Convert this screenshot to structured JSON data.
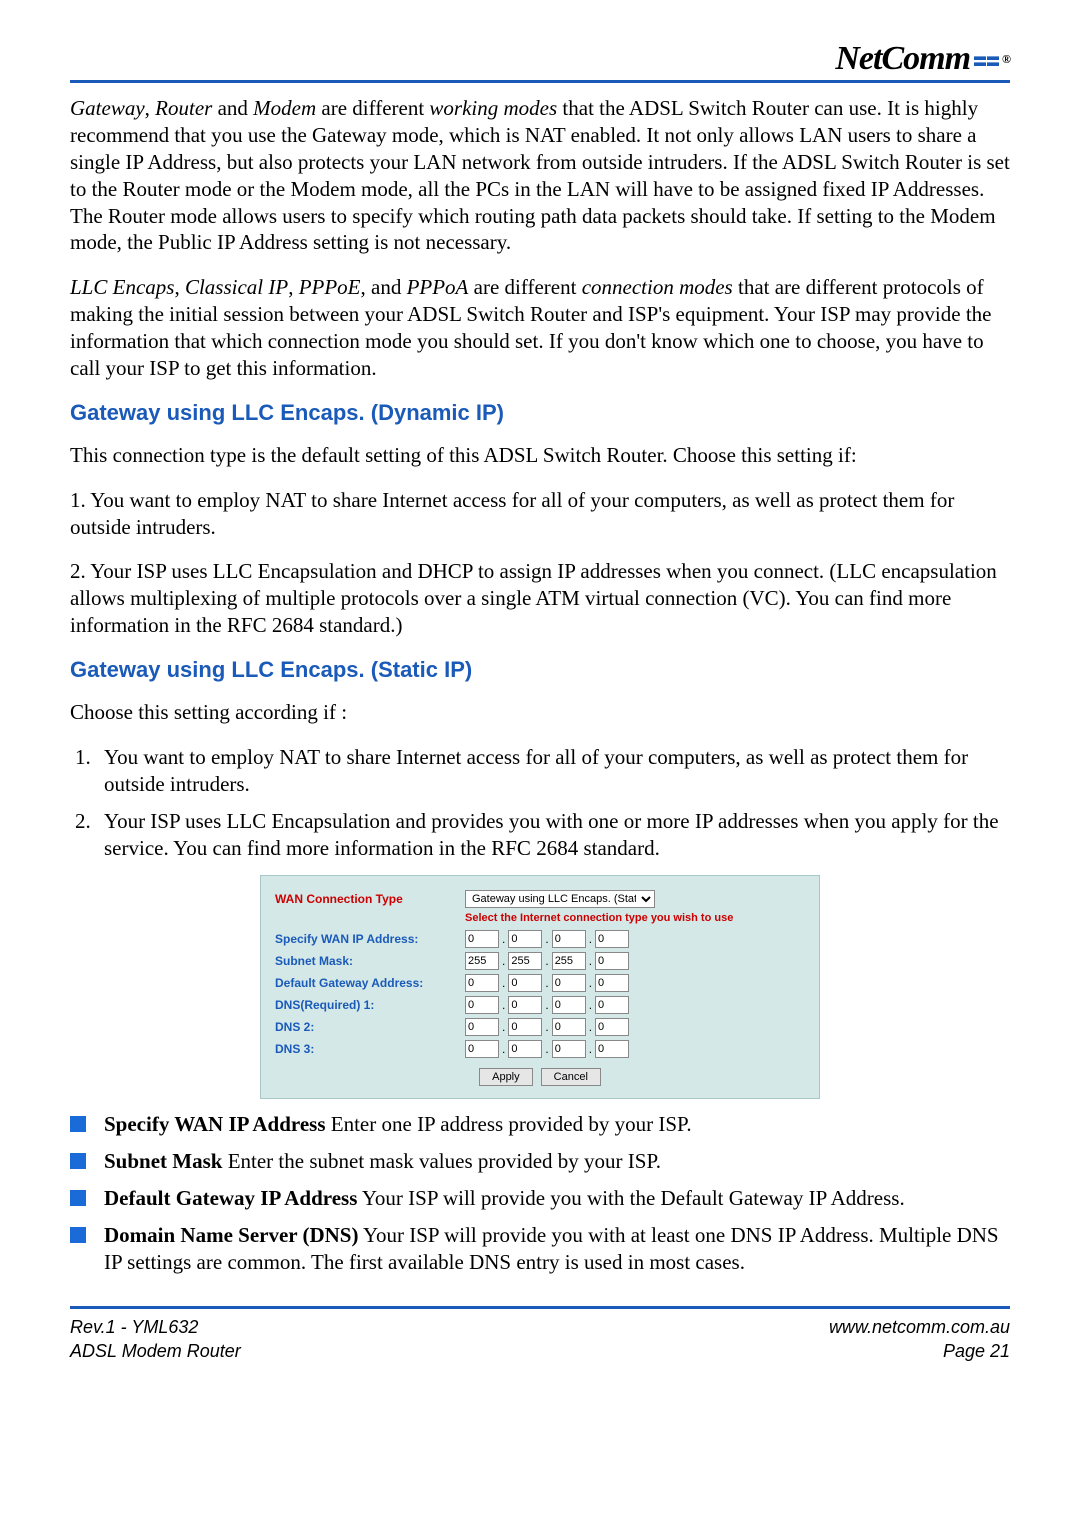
{
  "logo": {
    "text": "NetComm",
    "reg": "®"
  },
  "para1": "<span class=\"ital\">Gateway</span>, <span class=\"ital\">Router</span> and <span class=\"ital\">Modem</span> are different <span class=\"ital\">working modes</span> that the ADSL Switch Router can use. It is highly recommend that you use the Gateway mode, which is NAT enabled. It not only allows LAN users to share a single IP Address, but also protects your LAN network from outside intruders. If the ADSL Switch Router is set to the Router mode or the Modem mode, all the PCs in the LAN will have to be assigned fixed IP Addresses. The Router mode allows users to specify which routing path data packets should take. If setting to the Modem mode, the Public IP Address setting is not necessary.",
  "para2": "<span class=\"ital\">LLC Encaps</span>, <span class=\"ital\">Classical IP</span>, <span class=\"ital\">PPPoE</span>, and <span class=\"ital\">PPPoA</span> are different <span class=\"ital\">connection modes</span> that are different protocols of making the initial session between your ADSL Switch Router and ISP's equipment. Your ISP may provide the information that which connection mode you should set. If you don't know which one to choose, you have to call your ISP to get this information.",
  "h_dyn": "Gateway using LLC Encaps. (Dynamic IP)",
  "para3": "This connection type is the default setting of this ADSL Switch Router. Choose this setting if:",
  "para4": "1. You want to employ NAT to share Internet access for all of your computers, as well as protect them for outside intruders.",
  "para5": "2. Your ISP uses LLC Encapsulation and DHCP to assign IP addresses when you connect. (LLC encapsulation allows multiplexing of multiple protocols over a single ATM virtual connection (VC). You can find more information in the RFC 2684 standard.)",
  "h_stat": "Gateway using LLC Encaps. (Static IP)",
  "para6": "Choose this setting according if :",
  "ol": [
    "You want to employ NAT to share Internet access for all of your computers, as well as protect them for outside intruders.",
    "Your ISP uses LLC Encapsulation and provides you with one or more IP addresses when you apply for the service. You can find more information in the RFC 2684 standard."
  ],
  "shot": {
    "title_label": "WAN Connection Type",
    "select_value": "Gateway using LLC Encaps. (Static IP)",
    "hint": "Select the Internet connection type you wish to use",
    "rows": [
      {
        "label": "Specify WAN IP Address:",
        "vals": [
          "0",
          "0",
          "0",
          "0"
        ]
      },
      {
        "label": "Subnet Mask:",
        "vals": [
          "255",
          "255",
          "255",
          "0"
        ]
      },
      {
        "label": "Default Gateway Address:",
        "vals": [
          "0",
          "0",
          "0",
          "0"
        ]
      },
      {
        "label": "DNS(Required)  1:",
        "vals": [
          "0",
          "0",
          "0",
          "0"
        ]
      },
      {
        "label": "DNS  2:",
        "vals": [
          "0",
          "0",
          "0",
          "0"
        ]
      },
      {
        "label": "DNS  3:",
        "vals": [
          "0",
          "0",
          "0",
          "0"
        ]
      }
    ],
    "btn_apply": "Apply",
    "btn_cancel": "Cancel"
  },
  "bullets": [
    "<b>Specify WAN IP Address</b> Enter one IP address provided by your ISP.",
    "<b>Subnet Mask</b> Enter the subnet mask values provided by your ISP.",
    "<b>Default Gateway IP Address</b> Your ISP will provide you with the Default Gateway IP Address.",
    "<b>Domain Name Server (DNS)</b> Your ISP will provide you with at least one DNS IP Address. Multiple DNS IP settings are common. The first available DNS entry is used in most cases."
  ],
  "footer": {
    "left1": "Rev.1 - YML632",
    "left2": "ADSL Modem Router",
    "right1": "www.netcomm.com.au",
    "right2": "Page 21"
  }
}
